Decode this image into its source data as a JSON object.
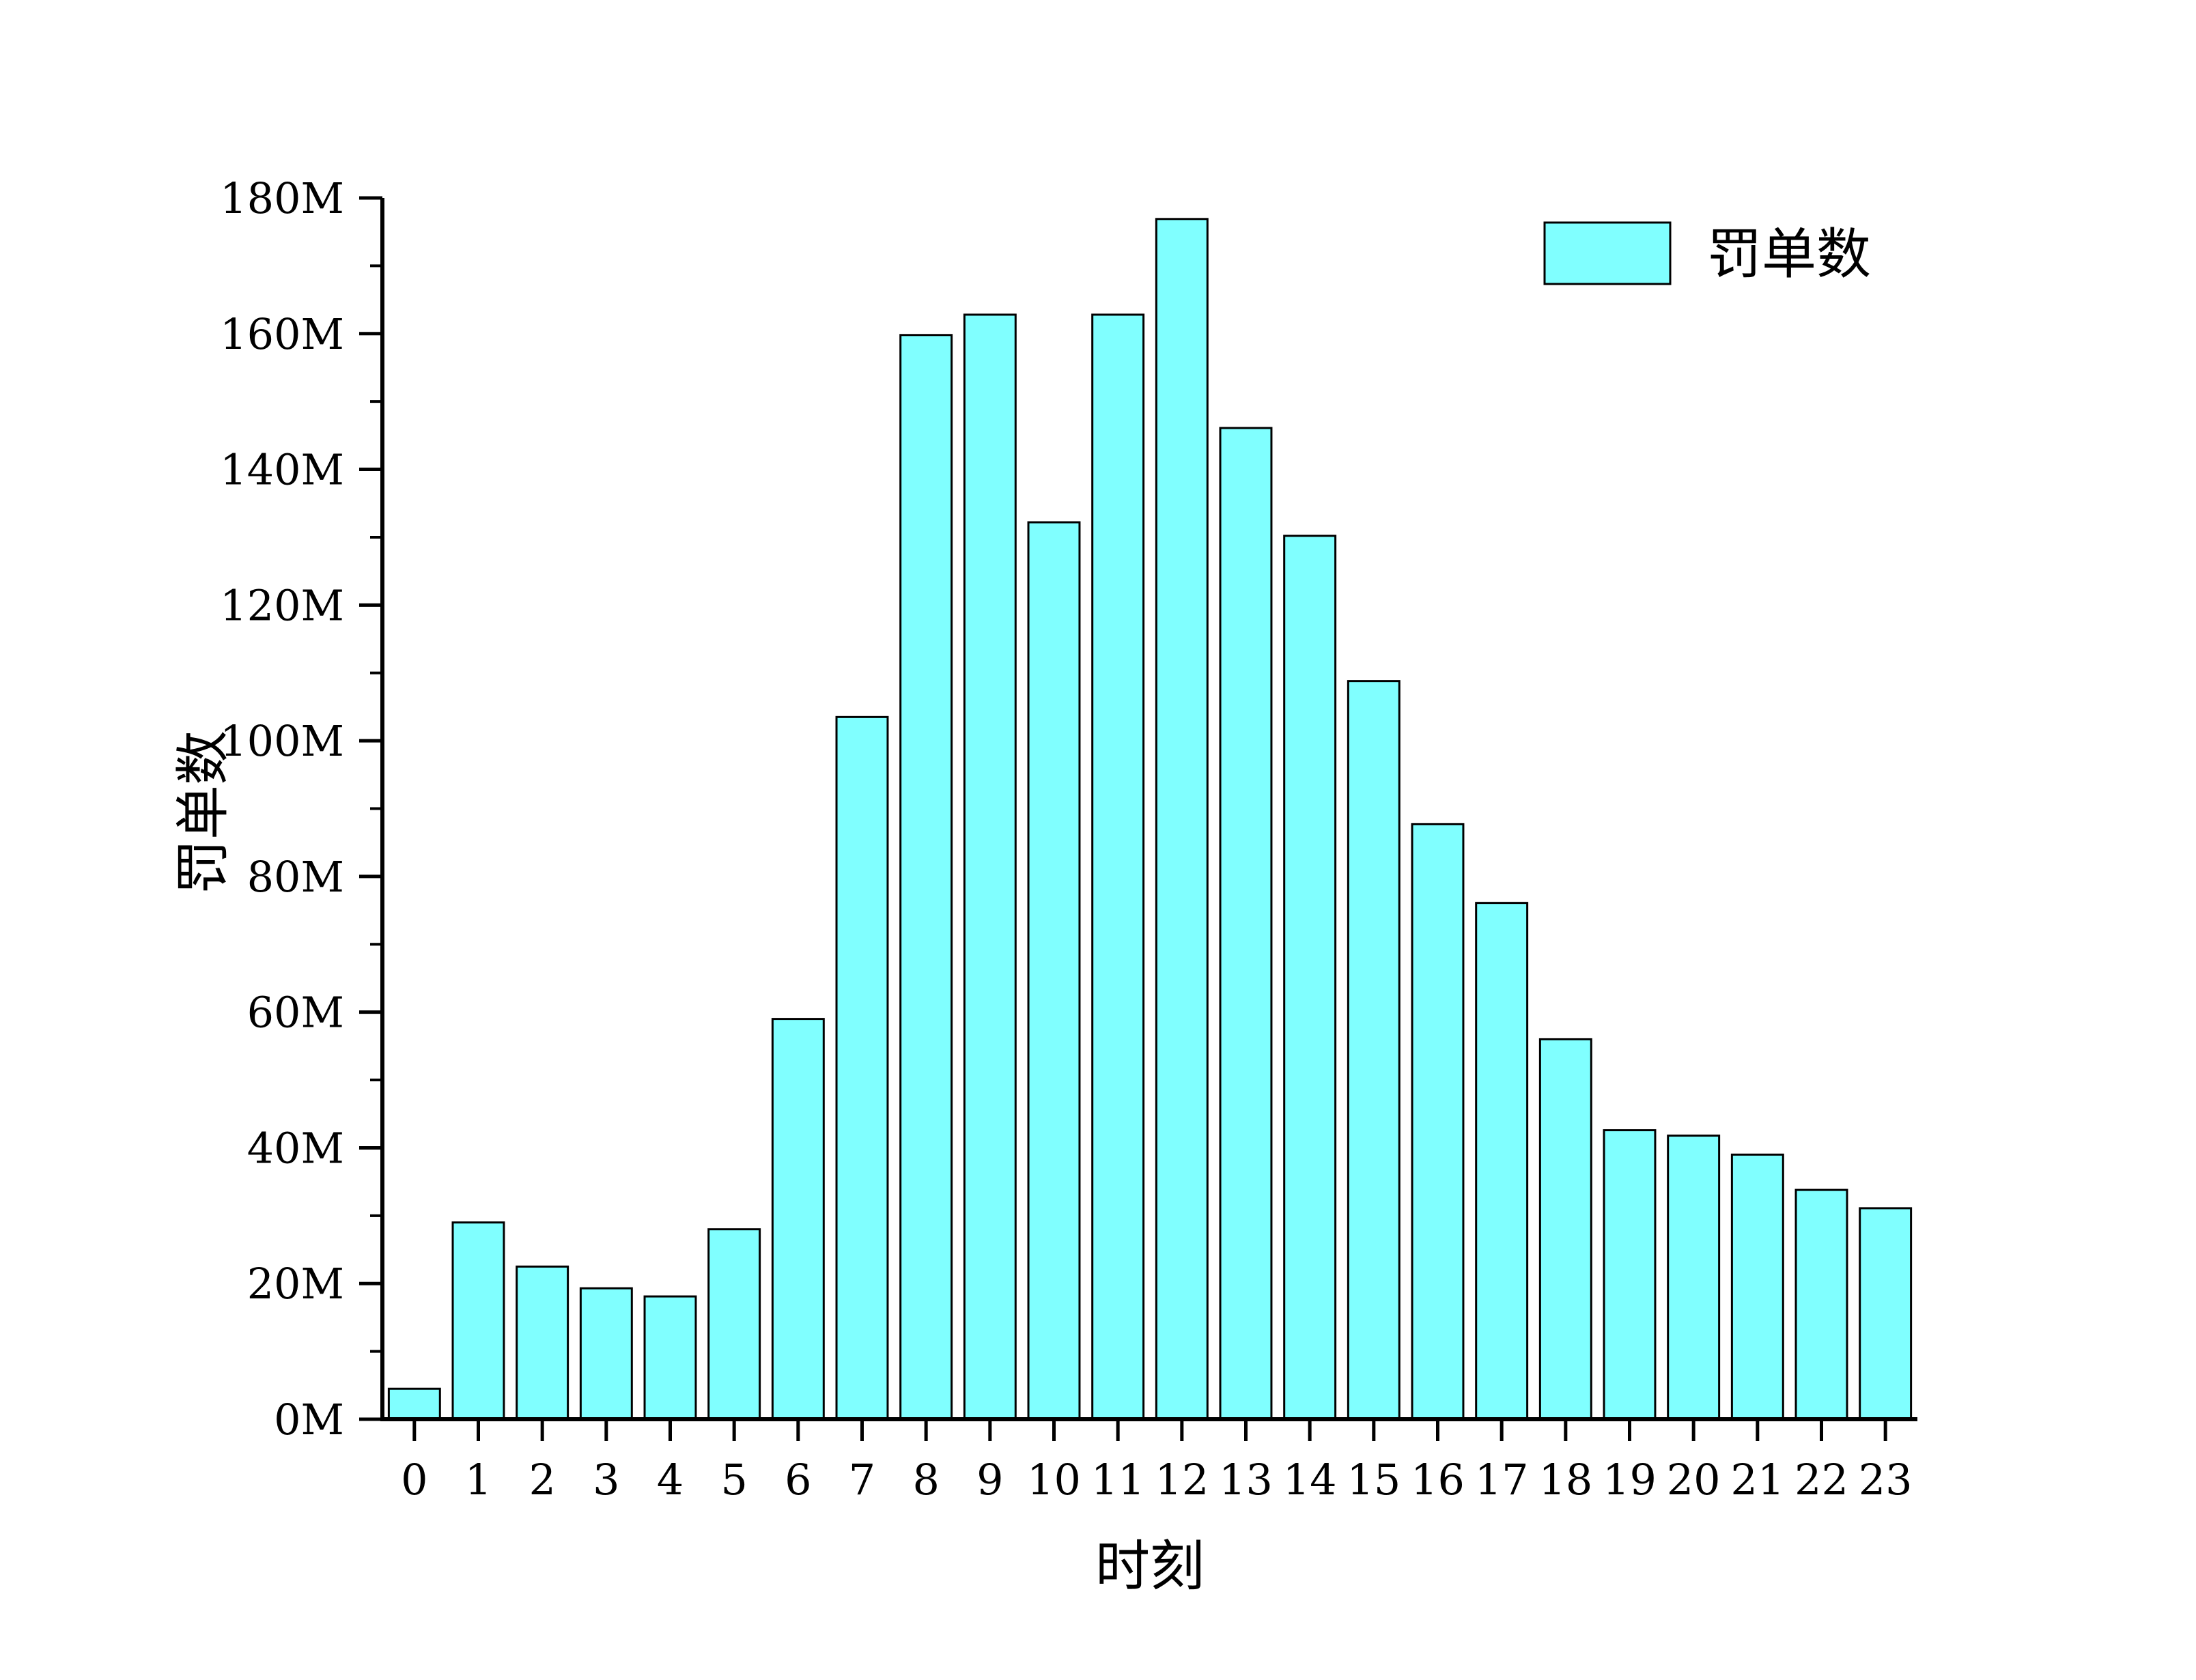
{
  "chart_data": {
    "type": "bar",
    "title": "",
    "xlabel": "时刻",
    "ylabel": "罚单数",
    "categories": [
      "0",
      "1",
      "2",
      "3",
      "4",
      "5",
      "6",
      "7",
      "8",
      "9",
      "10",
      "11",
      "12",
      "13",
      "14",
      "15",
      "16",
      "17",
      "18",
      "19",
      "20",
      "21",
      "22",
      "23"
    ],
    "series": [
      {
        "name": "罚单数",
        "color": "#80FFFF",
        "values": [
          4.5,
          29,
          22.5,
          19.3,
          18.1,
          28,
          59,
          103.5,
          159.8,
          162.8,
          132.2,
          162.8,
          176.9,
          146.1,
          130.2,
          108.8,
          87.7,
          76.1,
          56,
          42.6,
          41.8,
          39,
          33.8,
          31.1
        ]
      }
    ],
    "ylim": [
      0,
      180
    ],
    "yticks": [
      0,
      20,
      40,
      60,
      80,
      100,
      120,
      140,
      160,
      180
    ],
    "ytick_labels": [
      "0M",
      "20M",
      "40M",
      "60M",
      "80M",
      "100M",
      "120M",
      "140M",
      "160M",
      "180M"
    ],
    "grid": false,
    "legend": "top-right"
  }
}
